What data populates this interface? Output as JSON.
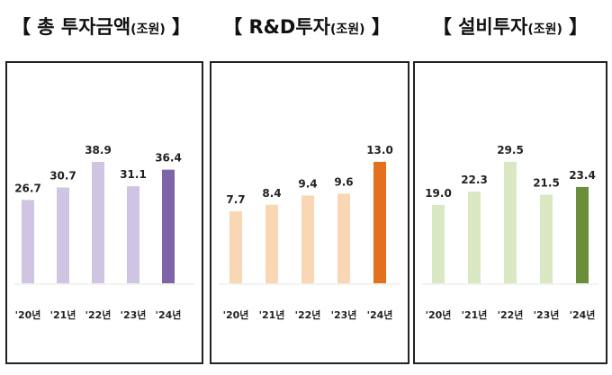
{
  "chart_data": [
    {
      "type": "bar",
      "title_main": "총 투자금액",
      "title_unit": "(조원)",
      "bracket_open": "【",
      "bracket_close": "】",
      "categories": [
        "'20년",
        "'21년",
        "'22년",
        "'23년",
        "'24년"
      ],
      "values": [
        26.7,
        30.7,
        38.9,
        31.1,
        36.4
      ],
      "value_labels": [
        "26.7",
        "30.7",
        "38.9",
        "31.1",
        "36.4"
      ],
      "colors": [
        "#cfc4e2",
        "#cfc4e2",
        "#cfc4e2",
        "#cfc4e2",
        "#7d64a8"
      ],
      "ylim": [
        0,
        45
      ]
    },
    {
      "type": "bar",
      "title_main": "R&D투자",
      "title_unit": "(조원)",
      "bracket_open": "【",
      "bracket_close": "】",
      "categories": [
        "'20년",
        "'21년",
        "'22년",
        "'23년",
        "'24년"
      ],
      "values": [
        7.7,
        8.4,
        9.4,
        9.6,
        13.0
      ],
      "value_labels": [
        "7.7",
        "8.4",
        "9.4",
        "9.6",
        "13.0"
      ],
      "colors": [
        "#f9d6b4",
        "#f9d6b4",
        "#f9d6b4",
        "#f9d6b4",
        "#e2701d"
      ],
      "ylim": [
        0,
        15
      ]
    },
    {
      "type": "bar",
      "title_main": "설비투자",
      "title_unit": "(조원)",
      "bracket_open": "【",
      "bracket_close": "】",
      "categories": [
        "'20년",
        "'21년",
        "'22년",
        "'23년",
        "'24년"
      ],
      "values": [
        19.0,
        22.3,
        29.5,
        21.5,
        23.4
      ],
      "value_labels": [
        "19.0",
        "22.3",
        "29.5",
        "21.5",
        "23.4"
      ],
      "colors": [
        "#d9e8c2",
        "#d9e8c2",
        "#d9e8c2",
        "#d9e8c2",
        "#6b8e3a"
      ],
      "ylim": [
        0,
        34
      ]
    }
  ]
}
